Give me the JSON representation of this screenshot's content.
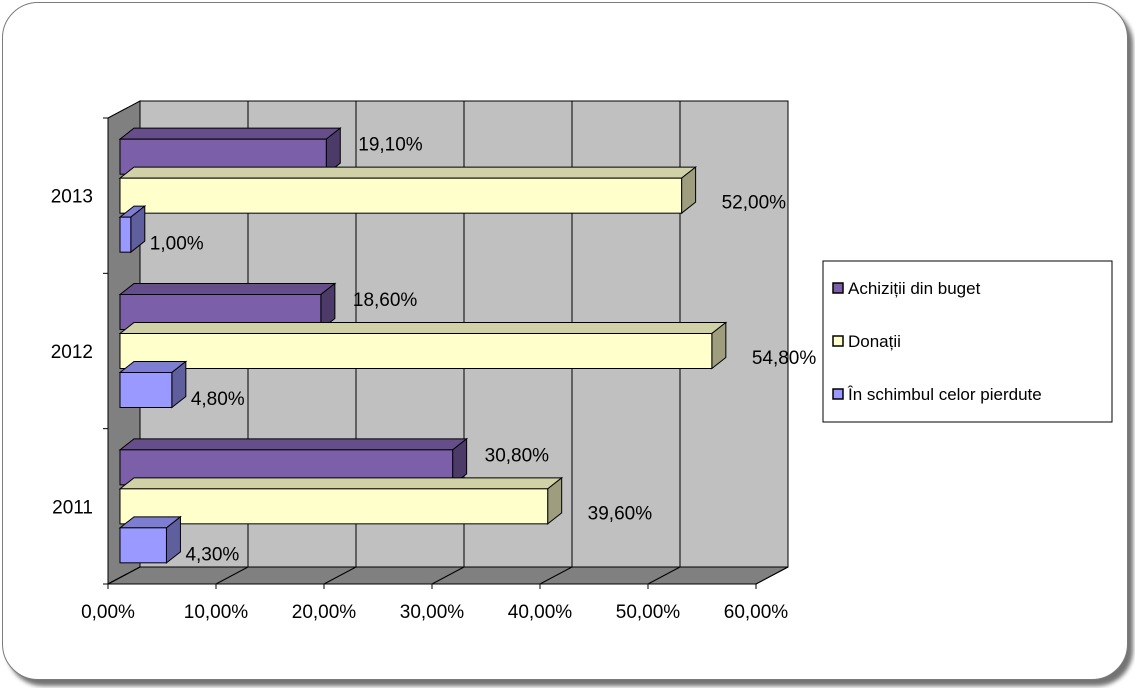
{
  "chart_data": {
    "type": "bar",
    "orientation": "horizontal",
    "three_d": true,
    "categories": [
      "2011",
      "2012",
      "2013"
    ],
    "series": [
      {
        "name": "Achiziții din buget",
        "values": [
          30.8,
          18.6,
          19.1
        ],
        "labels": [
          "30,80%",
          "18,60%",
          "19,10%"
        ],
        "color": "#7b5fa8"
      },
      {
        "name": "Donații",
        "values": [
          39.6,
          54.8,
          52.0
        ],
        "labels": [
          "39,60%",
          "54,80%",
          "52,00%"
        ],
        "color": "#ffffcc"
      },
      {
        "name": "În schimbul celor pierdute",
        "values": [
          4.3,
          4.8,
          1.0
        ],
        "labels": [
          "4,30%",
          "4,80%",
          "1,00%"
        ],
        "color": "#9999ff"
      }
    ],
    "xlim": [
      0,
      60
    ],
    "xticks": [
      0,
      10,
      20,
      30,
      40,
      50,
      60
    ],
    "xtick_labels": [
      "0,00%",
      "10,00%",
      "20,00%",
      "30,00%",
      "40,00%",
      "50,00%",
      "60,00%"
    ],
    "grid": true,
    "wall_color": "#c0c0c0",
    "floor_color": "#808080",
    "legend_position": "right"
  }
}
